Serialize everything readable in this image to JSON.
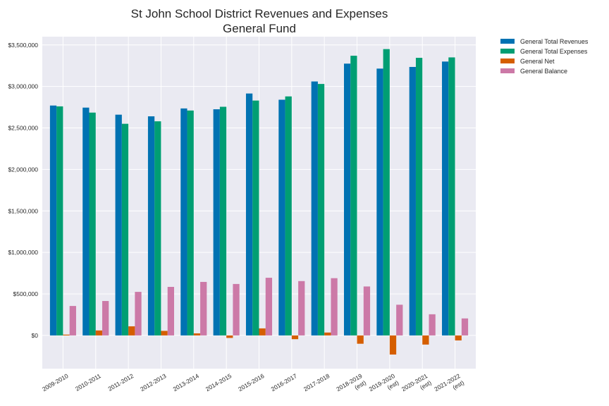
{
  "chart_data": {
    "type": "bar",
    "title": "St John School District Revenues and Expenses",
    "subtitle": "General Fund",
    "xlabel": "",
    "ylabel": "",
    "ylim": [
      -400000,
      3600000
    ],
    "yticks": [
      0,
      500000,
      1000000,
      1500000,
      2000000,
      2500000,
      3000000,
      3500000
    ],
    "ytick_labels": [
      "$0",
      "$500,000",
      "$1,000,000",
      "$1,500,000",
      "$2,000,000",
      "$2,500,000",
      "$3,000,000",
      "$3,500,000"
    ],
    "grid": true,
    "legend_position": "outside-top-right",
    "categories": [
      [
        "2009-2010"
      ],
      [
        "2010-2011"
      ],
      [
        "2011-2012"
      ],
      [
        "2012-2013"
      ],
      [
        "2013-2014"
      ],
      [
        "2014-2015"
      ],
      [
        "2015-2016"
      ],
      [
        "2016-2017"
      ],
      [
        "2017-2018"
      ],
      [
        "2018-2019",
        "(est)"
      ],
      [
        "2019-2020",
        "(est)"
      ],
      [
        "2020-2021",
        "(est)"
      ],
      [
        "2021-2022",
        "(est)"
      ]
    ],
    "series": [
      {
        "name": "General Total Revenues",
        "color": "#0072b2",
        "values": [
          2770000,
          2745000,
          2660000,
          2640000,
          2735000,
          2725000,
          2915000,
          2840000,
          3060000,
          3275000,
          3215000,
          3235000,
          3300000
        ]
      },
      {
        "name": "General Total Expenses",
        "color": "#009e73",
        "values": [
          2760000,
          2685000,
          2550000,
          2580000,
          2710000,
          2755000,
          2830000,
          2880000,
          3030000,
          3370000,
          3450000,
          3345000,
          3350000
        ]
      },
      {
        "name": "General Net",
        "color": "#d55e00",
        "values": [
          10000,
          60000,
          110000,
          55000,
          25000,
          -30000,
          85000,
          -45000,
          35000,
          -100000,
          -230000,
          -110000,
          -60000
        ]
      },
      {
        "name": "General Balance",
        "color": "#cc79a7",
        "values": [
          355000,
          415000,
          525000,
          585000,
          645000,
          620000,
          695000,
          655000,
          690000,
          590000,
          370000,
          255000,
          205000
        ]
      }
    ]
  }
}
